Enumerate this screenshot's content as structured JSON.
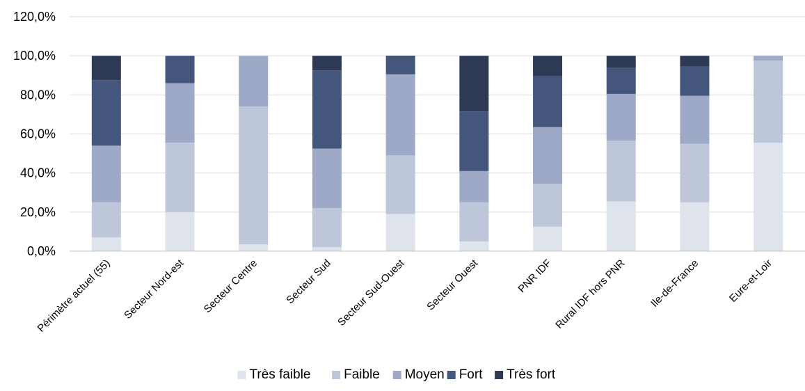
{
  "chart_data": {
    "type": "bar",
    "stacked": true,
    "title": "",
    "xlabel": "",
    "ylabel": "",
    "ylim": [
      0,
      120
    ],
    "yticks": [
      "0,0%",
      "20,0%",
      "40,0%",
      "60,0%",
      "80,0%",
      "100,0%",
      "120,0%"
    ],
    "grid": true,
    "legend_position": "bottom",
    "categories": [
      "Périmètre actuel (55)",
      "Secteur Nord-est",
      "Secteur Centre",
      "Secteur Sud",
      "Secteur Sud-Ouest",
      "Secteur Ouest",
      "PNR IDF",
      "Rural IDF hors PNR",
      "Ile-de-France",
      "Eure-et-Loir"
    ],
    "series": [
      {
        "name": "Très faible",
        "color": "#dee3ec",
        "values": [
          7.0,
          20.0,
          3.5,
          2.0,
          19.0,
          5.0,
          12.5,
          25.5,
          25.0,
          55.5
        ]
      },
      {
        "name": "Faible",
        "color": "#bec7d9",
        "values": [
          18.0,
          35.5,
          70.5,
          20.0,
          30.0,
          20.0,
          22.0,
          31.0,
          30.0,
          42.0
        ]
      },
      {
        "name": "Moyen",
        "color": "#9da9c6",
        "values": [
          29.0,
          30.5,
          26.0,
          30.5,
          41.5,
          16.0,
          29.0,
          24.0,
          24.5,
          2.5
        ]
      },
      {
        "name": "Fort",
        "color": "#45567c",
        "values": [
          33.5,
          14.0,
          0.0,
          40.0,
          9.0,
          30.5,
          26.0,
          13.5,
          15.0,
          0.0
        ]
      },
      {
        "name": "Très fort",
        "color": "#2e3a54",
        "values": [
          12.5,
          0.0,
          0.0,
          7.5,
          0.5,
          28.5,
          10.5,
          6.0,
          5.5,
          0.0
        ]
      }
    ]
  }
}
